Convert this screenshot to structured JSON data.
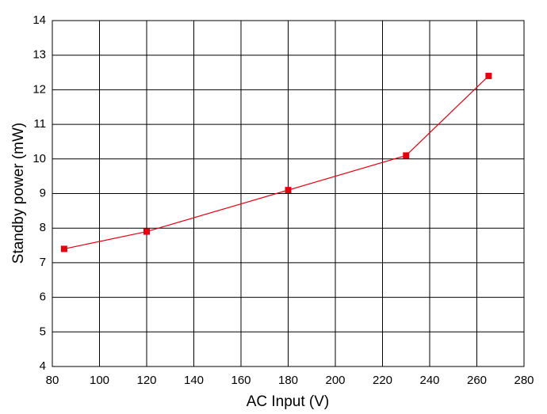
{
  "chart_data": {
    "type": "line",
    "x_label": "AC Input (V)",
    "y_label": "Standby power (mW)",
    "x": [
      85,
      120,
      180,
      230,
      265
    ],
    "series": [
      {
        "name": "Standby power",
        "color": "#e3000f",
        "values": [
          7.4,
          7.9,
          9.1,
          10.1,
          12.4
        ]
      }
    ],
    "marker": "square",
    "xlim": [
      80,
      280
    ],
    "xticks": [
      80,
      100,
      120,
      140,
      160,
      180,
      200,
      220,
      240,
      260,
      280
    ],
    "ylim": [
      4,
      14
    ],
    "yticks": [
      4,
      5,
      6,
      7,
      8,
      9,
      10,
      11,
      12,
      13,
      14
    ],
    "grid": true
  }
}
